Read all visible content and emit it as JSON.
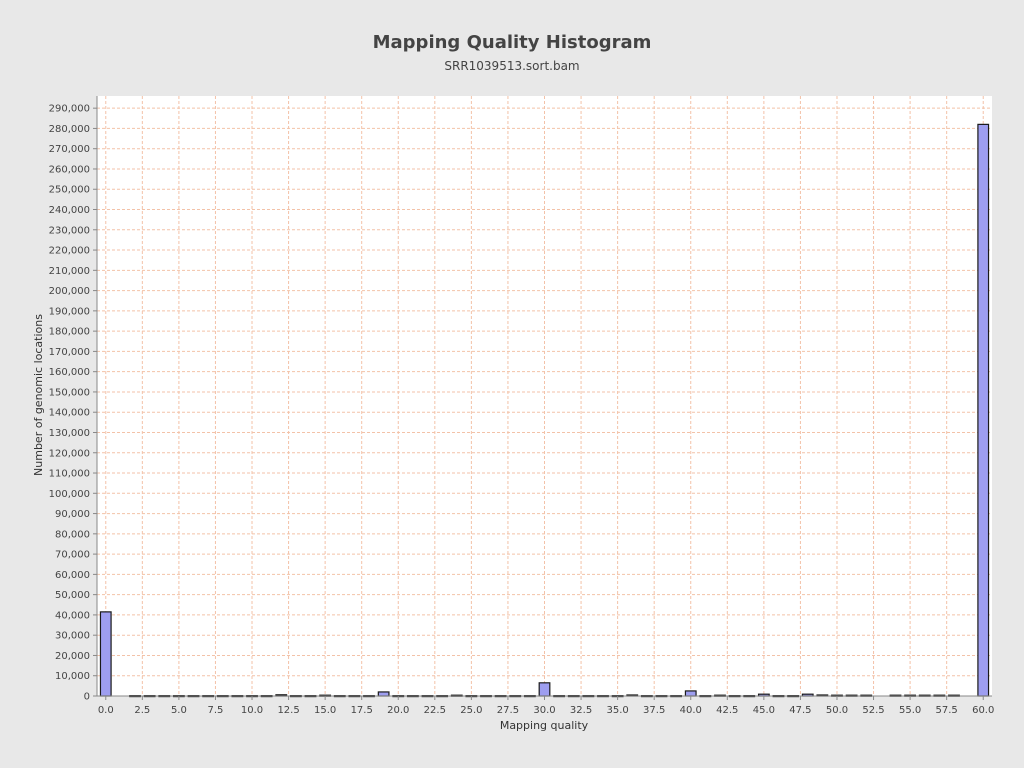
{
  "chart_data": {
    "type": "bar",
    "title": "Mapping Quality Histogram",
    "subtitle": "SRR1039513.sort.bam",
    "xlabel": "Mapping quality",
    "ylabel": "Number of genomic locations",
    "xlim": [
      -0.6,
      60.6
    ],
    "ylim": [
      0,
      296000
    ],
    "x_ticks": [
      0,
      2.5,
      5,
      7.5,
      10,
      12.5,
      15,
      17.5,
      20,
      22.5,
      25,
      27.5,
      30,
      32.5,
      35,
      37.5,
      40,
      42.5,
      45,
      47.5,
      50,
      52.5,
      55,
      57.5,
      60
    ],
    "x_tick_labels": [
      "0.0",
      "2.5",
      "5.0",
      "7.5",
      "10.0",
      "12.5",
      "15.0",
      "17.5",
      "20.0",
      "22.5",
      "25.0",
      "27.5",
      "30.0",
      "32.5",
      "35.0",
      "37.5",
      "40.0",
      "42.5",
      "45.0",
      "47.5",
      "50.0",
      "52.5",
      "55.0",
      "57.5",
      "60.0"
    ],
    "y_ticks": [
      0,
      10000,
      20000,
      30000,
      40000,
      50000,
      60000,
      70000,
      80000,
      90000,
      100000,
      110000,
      120000,
      130000,
      140000,
      150000,
      160000,
      170000,
      180000,
      190000,
      200000,
      210000,
      220000,
      230000,
      240000,
      250000,
      260000,
      270000,
      280000,
      290000
    ],
    "y_tick_labels": [
      "0",
      "10,000",
      "20,000",
      "30,000",
      "40,000",
      "50,000",
      "60,000",
      "70,000",
      "80,000",
      "90,000",
      "100,000",
      "110,000",
      "120,000",
      "130,000",
      "140,000",
      "150,000",
      "160,000",
      "170,000",
      "180,000",
      "190,000",
      "200,000",
      "210,000",
      "220,000",
      "230,000",
      "240,000",
      "250,000",
      "260,000",
      "270,000",
      "280,000",
      "290,000"
    ],
    "bin_width": 1,
    "x": [
      0,
      1,
      2,
      3,
      4,
      5,
      6,
      7,
      8,
      9,
      10,
      11,
      12,
      13,
      14,
      15,
      16,
      17,
      18,
      19,
      20,
      21,
      22,
      23,
      24,
      25,
      26,
      27,
      28,
      29,
      30,
      31,
      32,
      33,
      34,
      35,
      36,
      37,
      38,
      39,
      40,
      41,
      42,
      43,
      44,
      45,
      46,
      47,
      48,
      49,
      50,
      51,
      52,
      53,
      54,
      55,
      56,
      57,
      58,
      59,
      60
    ],
    "values": [
      41500,
      0,
      200,
      200,
      200,
      200,
      200,
      200,
      200,
      200,
      200,
      200,
      600,
      200,
      200,
      400,
      200,
      200,
      200,
      2000,
      200,
      200,
      200,
      200,
      400,
      200,
      200,
      200,
      200,
      200,
      6500,
      200,
      200,
      200,
      200,
      200,
      500,
      200,
      200,
      200,
      2500,
      200,
      400,
      200,
      200,
      900,
      200,
      200,
      900,
      500,
      400,
      400,
      400,
      0,
      400,
      400,
      400,
      400,
      400,
      0,
      282000
    ],
    "grid": true,
    "colors": {
      "background": "#e8e8e8",
      "plot_background": "#ffffff",
      "grid": "#f3c2a8",
      "bar_fill": "#9e9ef0",
      "bar_stroke": "#1a1a1a",
      "axis": "#888888"
    }
  }
}
